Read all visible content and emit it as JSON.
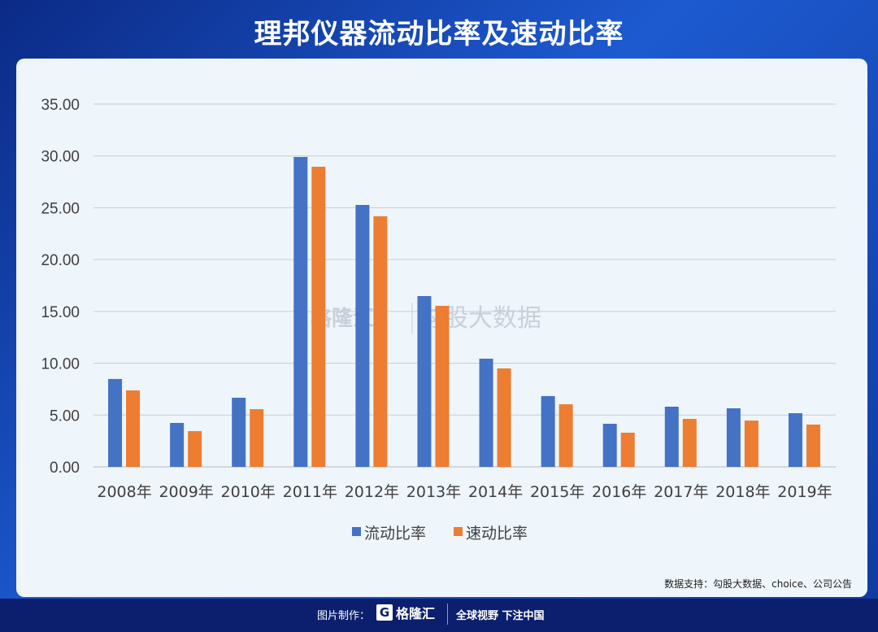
{
  "title": "理邦仪器流动比率及速动比率",
  "source": "数据支持：勾股大数据、choice、公司公告",
  "footer": {
    "maker_label": "图片制作：",
    "logo_text": "格隆汇",
    "slogan": "全球视野 下注中国"
  },
  "watermark": {
    "left": "格隆汇",
    "right": "勾股大数据"
  },
  "chart_data": {
    "type": "bar",
    "title": "理邦仪器流动比率及速动比率",
    "categories": [
      "2008年",
      "2009年",
      "2010年",
      "2011年",
      "2012年",
      "2013年",
      "2014年",
      "2015年",
      "2016年",
      "2017年",
      "2018年",
      "2019年"
    ],
    "series": [
      {
        "name": "流动比率",
        "color": "#4472c4",
        "values": [
          8.48,
          4.24,
          6.67,
          29.9,
          25.27,
          16.48,
          10.44,
          6.83,
          4.16,
          5.81,
          5.65,
          5.18
        ]
      },
      {
        "name": "速动比率",
        "color": "#ed7d31",
        "values": [
          7.38,
          3.45,
          5.57,
          28.96,
          24.18,
          15.54,
          9.5,
          6.04,
          3.3,
          4.63,
          4.47,
          4.08
        ]
      }
    ],
    "ylim": [
      0,
      35
    ],
    "yticks": [
      "0.00",
      "5.00",
      "10.00",
      "15.00",
      "20.00",
      "25.00",
      "30.00",
      "35.00"
    ],
    "grid": true,
    "legend": "bottom"
  }
}
